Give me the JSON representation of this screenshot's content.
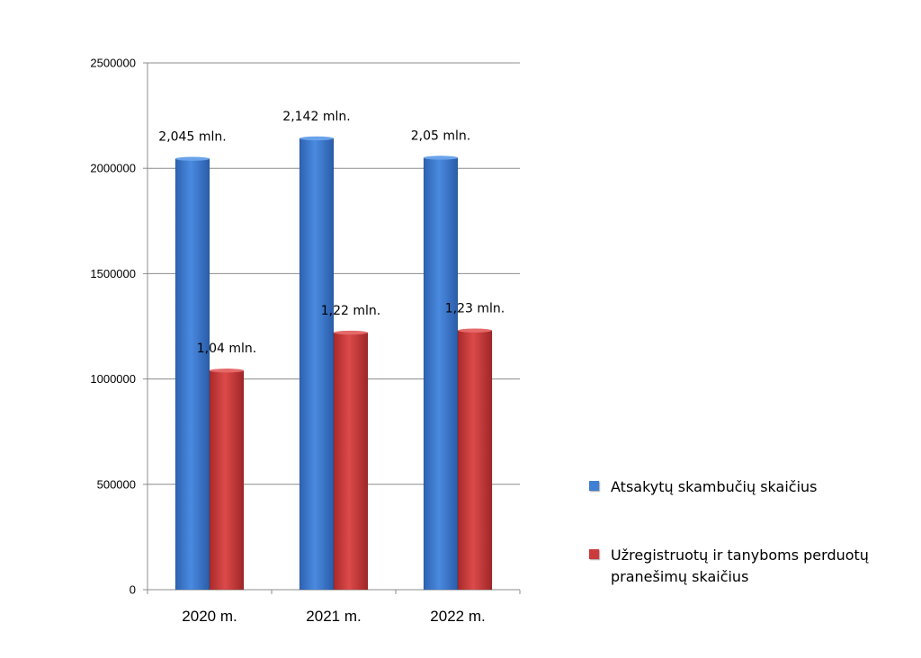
{
  "chart_data": {
    "type": "bar",
    "categories": [
      "2020 m.",
      "2021 m.",
      "2022 m."
    ],
    "series": [
      {
        "name": "Atsakytų skambučių skaičius",
        "color": "#3f7fd4",
        "values": [
          2045000,
          2142000,
          2050000
        ],
        "labels": [
          "2,045 mln.",
          "2,142 mln.",
          "2,05 mln."
        ]
      },
      {
        "name": "Užregistruotų ir tanyboms perduotų pranešimų skaičius",
        "color": "#cc3b3b",
        "values": [
          1040000,
          1220000,
          1230000
        ],
        "labels": [
          "1,04 mln.",
          "1,22 mln.",
          "1,23 mln."
        ]
      }
    ],
    "ylim": [
      0,
      2500000
    ],
    "yticks": [
      "0",
      "500000",
      "1000000",
      "1500000",
      "2000000",
      "2500000"
    ],
    "grid": true,
    "legend_position": "right",
    "title": "",
    "xlabel": "",
    "ylabel": ""
  }
}
